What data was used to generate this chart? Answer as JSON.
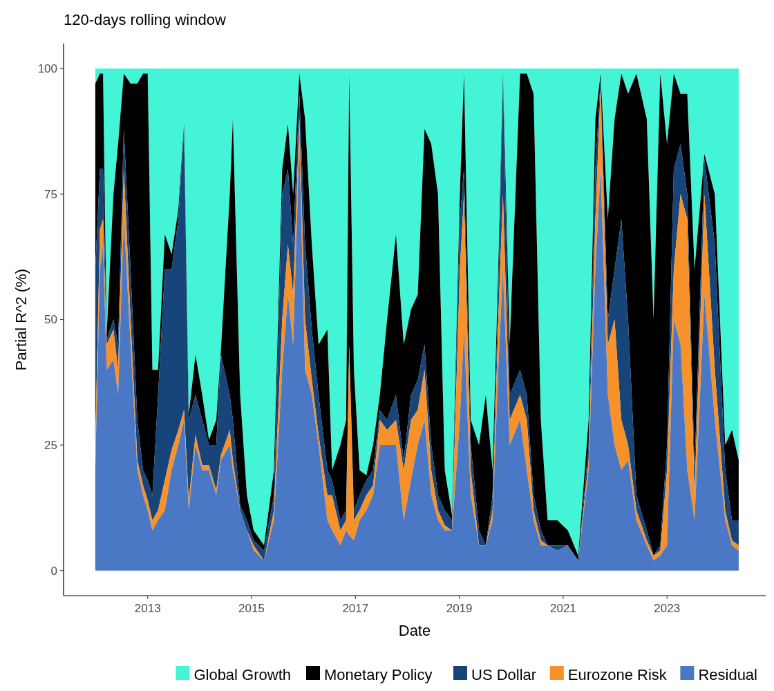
{
  "chart_data": {
    "type": "area",
    "stacked": true,
    "title": "120-days rolling window",
    "xlabel": "Date",
    "ylabel": "Partial R^2 (%)",
    "xlim": [
      2011.38,
      2024.9
    ],
    "xticks": [
      2013,
      2015,
      2017,
      2019,
      2021,
      2023
    ],
    "ylim": [
      -5,
      105
    ],
    "yticks": [
      0,
      25,
      50,
      75,
      100
    ],
    "grid": false,
    "legend": "bottom",
    "x": [
      2011.99,
      2012.08,
      2012.14,
      2012.21,
      2012.34,
      2012.43,
      2012.54,
      2012.67,
      2012.8,
      2012.91,
      2013.0,
      2013.09,
      2013.2,
      2013.33,
      2013.46,
      2013.59,
      2013.7,
      2013.79,
      2013.92,
      2014.05,
      2014.18,
      2014.32,
      2014.41,
      2014.58,
      2014.64,
      2014.78,
      2014.91,
      2015.04,
      2015.24,
      2015.43,
      2015.59,
      2015.7,
      2015.8,
      2015.92,
      2016.03,
      2016.16,
      2016.29,
      2016.46,
      2016.55,
      2016.71,
      2016.82,
      2016.88,
      2016.97,
      2017.08,
      2017.21,
      2017.34,
      2017.47,
      2017.61,
      2017.78,
      2017.93,
      2018.07,
      2018.2,
      2018.33,
      2018.46,
      2018.59,
      2018.72,
      2018.86,
      2019.01,
      2019.09,
      2019.22,
      2019.38,
      2019.51,
      2019.64,
      2019.75,
      2019.84,
      2019.97,
      2020.17,
      2020.3,
      2020.43,
      2020.57,
      2020.7,
      2020.89,
      2021.09,
      2021.29,
      2021.49,
      2021.62,
      2021.72,
      2021.86,
      2021.99,
      2022.12,
      2022.25,
      2022.41,
      2022.61,
      2022.74,
      2022.87,
      2023.0,
      2023.13,
      2023.26,
      2023.39,
      2023.53,
      2023.72,
      2023.92,
      2024.12,
      2024.25,
      2024.38
    ],
    "series": [
      {
        "name": "Residual",
        "color": "#4a78c4",
        "values": [
          20,
          60,
          65,
          40,
          42,
          35,
          70,
          45,
          20,
          15,
          12,
          8,
          10,
          12,
          20,
          25,
          30,
          12,
          25,
          20,
          20,
          15,
          22,
          25,
          20,
          12,
          8,
          4,
          2,
          10,
          40,
          55,
          45,
          85,
          40,
          35,
          25,
          10,
          8,
          5,
          8,
          7,
          6,
          10,
          12,
          15,
          25,
          25,
          25,
          10,
          18,
          25,
          30,
          15,
          10,
          8,
          8,
          30,
          48,
          15,
          5,
          5,
          10,
          40,
          60,
          25,
          30,
          20,
          10,
          5,
          5,
          4,
          5,
          2,
          20,
          60,
          80,
          35,
          25,
          20,
          22,
          10,
          5,
          2,
          3,
          5,
          50,
          45,
          20,
          10,
          55,
          30,
          10,
          5,
          4
        ]
      },
      {
        "name": "Eurozone Risk",
        "color": "#f7922a",
        "values": [
          5,
          8,
          5,
          5,
          6,
          5,
          10,
          5,
          2,
          2,
          2,
          2,
          2,
          6,
          4,
          3,
          2,
          2,
          2,
          1,
          1,
          1,
          1,
          3,
          2,
          0,
          0,
          1,
          0,
          2,
          10,
          10,
          10,
          5,
          10,
          3,
          2,
          5,
          7,
          3,
          2,
          38,
          4,
          2,
          3,
          2,
          5,
          3,
          5,
          10,
          12,
          7,
          10,
          5,
          2,
          1,
          0,
          30,
          27,
          5,
          0,
          0,
          2,
          10,
          15,
          5,
          5,
          10,
          2,
          1,
          0,
          0,
          0,
          0,
          2,
          10,
          16,
          10,
          25,
          10,
          3,
          2,
          1,
          1,
          1,
          15,
          10,
          30,
          50,
          5,
          20,
          10,
          2,
          1,
          1
        ]
      },
      {
        "name": "US Dollar",
        "color": "#174479",
        "values": [
          35,
          12,
          10,
          1,
          2,
          5,
          8,
          10,
          8,
          3,
          4,
          5,
          23,
          42,
          36,
          42,
          56,
          16,
          8,
          9,
          4,
          9,
          20,
          7,
          8,
          1,
          2,
          1,
          2,
          3,
          25,
          15,
          10,
          5,
          15,
          10,
          8,
          5,
          3,
          2,
          2,
          0,
          2,
          3,
          3,
          3,
          2,
          2,
          5,
          2,
          5,
          6,
          5,
          5,
          3,
          3,
          2,
          10,
          5,
          5,
          3,
          0,
          3,
          5,
          23,
          5,
          5,
          5,
          3,
          2,
          0,
          1,
          0,
          0,
          3,
          10,
          2,
          5,
          10,
          40,
          25,
          3,
          2,
          0,
          1,
          5,
          20,
          10,
          5,
          5,
          7,
          25,
          8,
          4,
          5
        ]
      },
      {
        "name": "Monetary Policy",
        "color": "#000000",
        "values": [
          37,
          19,
          19,
          1,
          25,
          40,
          11,
          37,
          67,
          79,
          81,
          25,
          5,
          7,
          3,
          2,
          1,
          1,
          8,
          5,
          1,
          5,
          1,
          40,
          60,
          22,
          5,
          2,
          1,
          5,
          5,
          9,
          10,
          4,
          25,
          17,
          10,
          28,
          2,
          15,
          18,
          54,
          28,
          5,
          1,
          5,
          3,
          20,
          32,
          23,
          17,
          17,
          43,
          60,
          60,
          8,
          1,
          5,
          19,
          5,
          17,
          30,
          5,
          5,
          1,
          10,
          59,
          64,
          80,
          22,
          5,
          5,
          3,
          1,
          5,
          10,
          1,
          20,
          30,
          29,
          45,
          84,
          82,
          47,
          94,
          60,
          19,
          10,
          20,
          40,
          1,
          10,
          5,
          18,
          12
        ]
      },
      {
        "name": "Global Growth",
        "color": "#43f5d6",
        "values": [
          3,
          1,
          1,
          53,
          25,
          15,
          1,
          3,
          3,
          1,
          1,
          60,
          60,
          33,
          37,
          28,
          11,
          69,
          57,
          65,
          74,
          70,
          56,
          25,
          10,
          65,
          85,
          92,
          95,
          80,
          20,
          11,
          25,
          1,
          10,
          35,
          55,
          52,
          80,
          75,
          70,
          1,
          60,
          80,
          81,
          75,
          65,
          50,
          33,
          55,
          48,
          45,
          12,
          15,
          25,
          80,
          89,
          25,
          1,
          70,
          75,
          65,
          80,
          40,
          1,
          55,
          1,
          1,
          5,
          70,
          90,
          90,
          92,
          97,
          70,
          10,
          1,
          30,
          10,
          1,
          5,
          1,
          10,
          50,
          1,
          15,
          1,
          5,
          5,
          40,
          17,
          25,
          75,
          72,
          78
        ]
      }
    ]
  }
}
